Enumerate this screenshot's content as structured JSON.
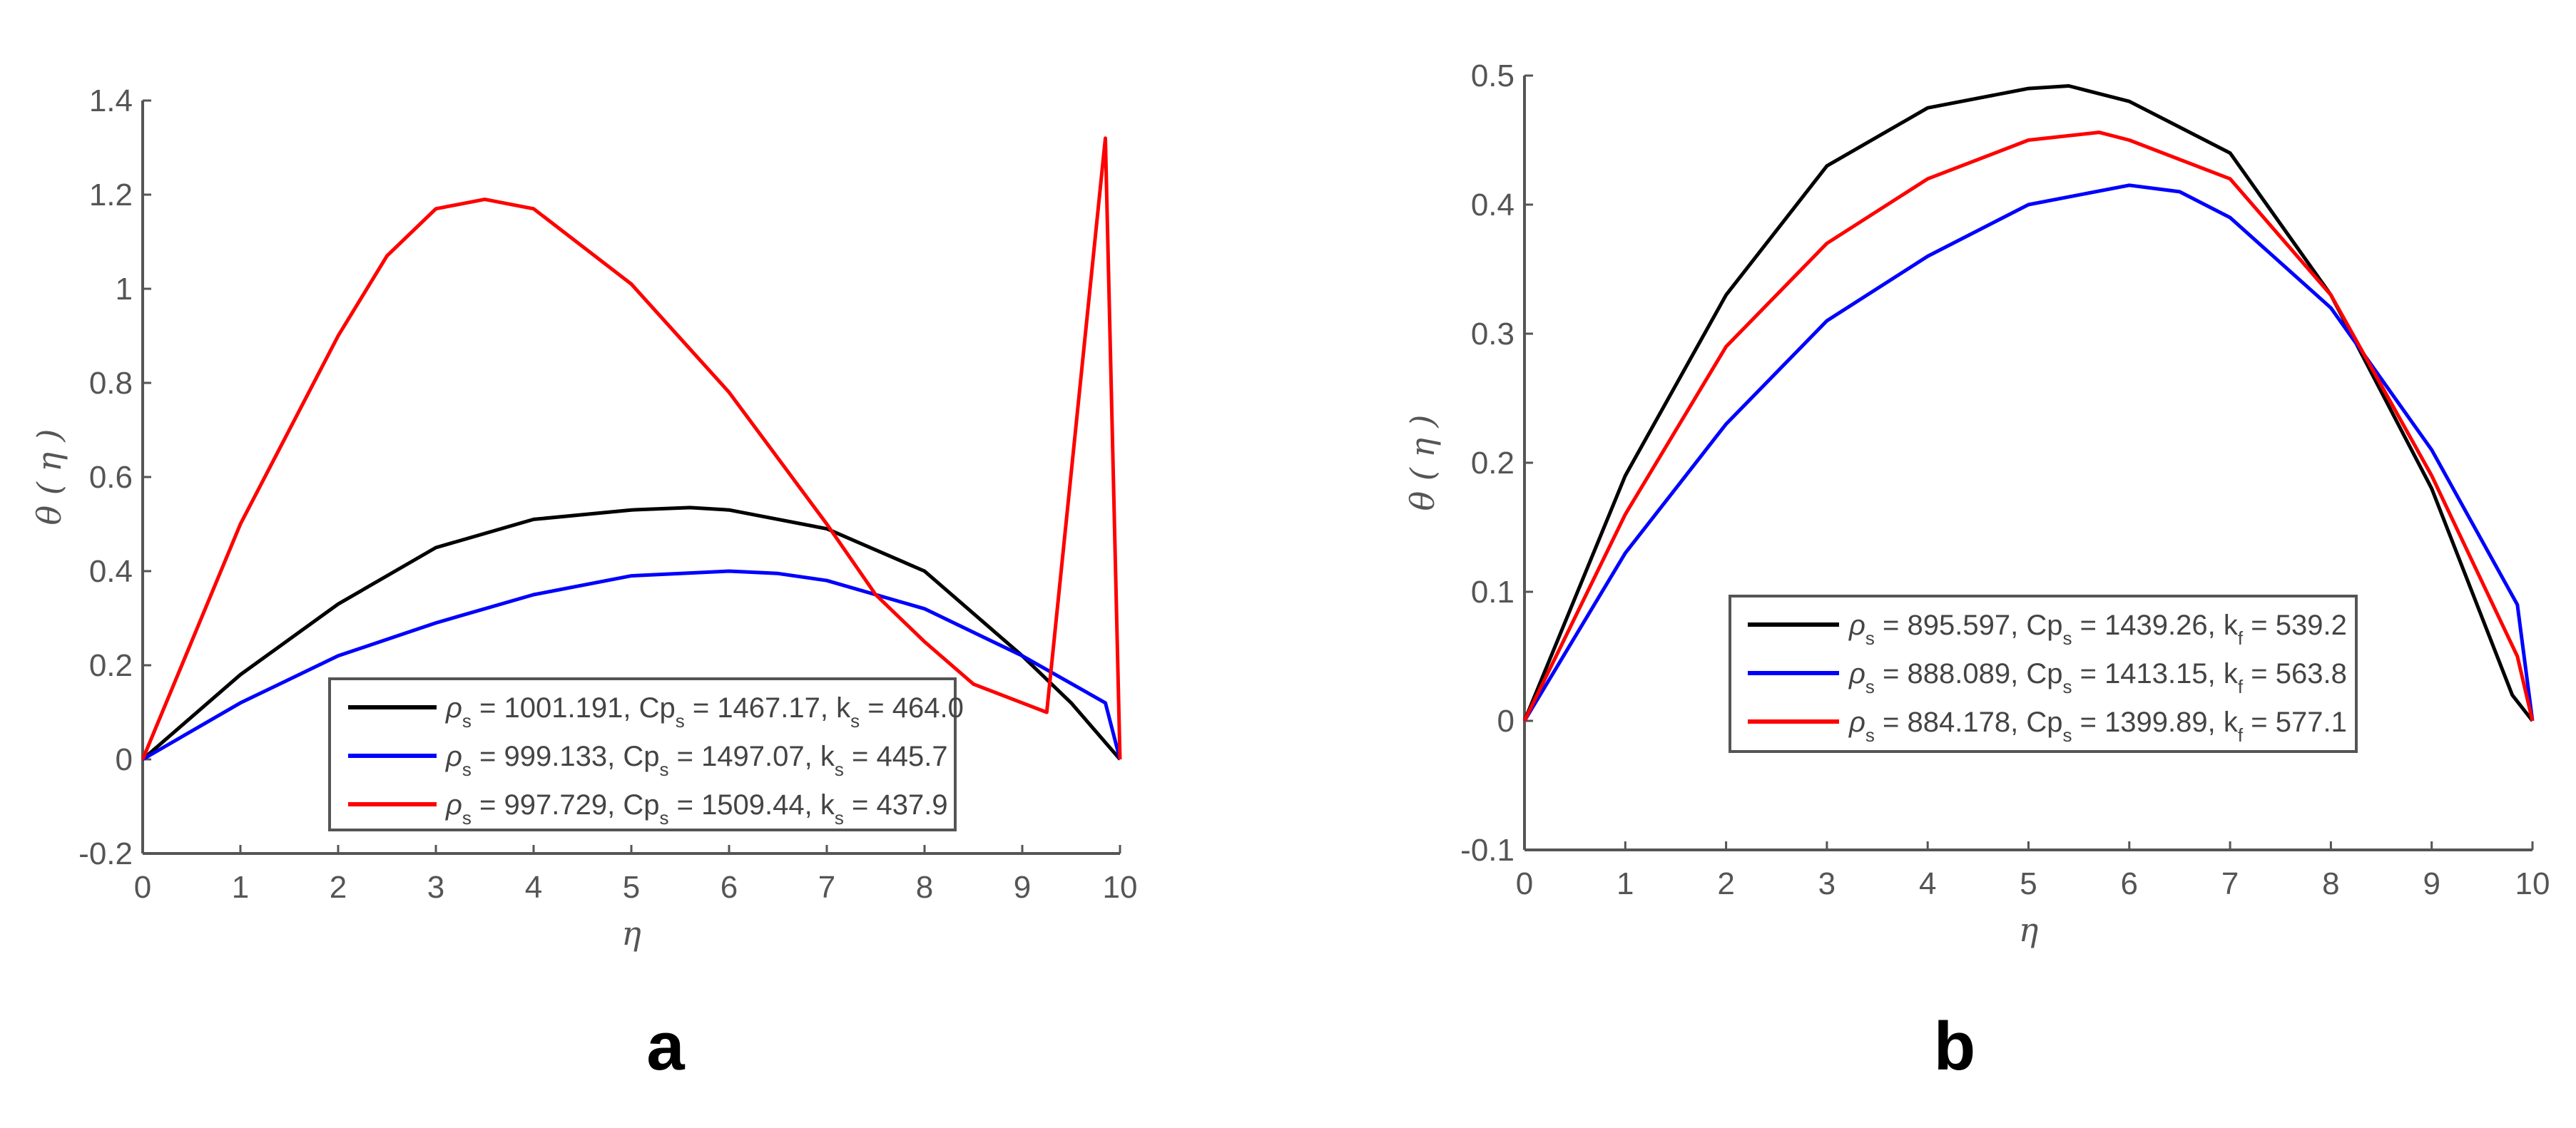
{
  "chart_data": [
    {
      "type": "line",
      "panel_label": "a",
      "xlabel": "η",
      "ylabel": "θ ( η )",
      "xlim": [
        0,
        10
      ],
      "ylim": [
        -0.2,
        1.4
      ],
      "xticks": [
        "0",
        "1",
        "2",
        "3",
        "4",
        "5",
        "6",
        "7",
        "8",
        "9",
        "10"
      ],
      "yticks": [
        "-0.2",
        "0",
        "0.2",
        "0.4",
        "0.6",
        "0.8",
        "1",
        "1.2",
        "1.4"
      ],
      "grid": false,
      "legend_position": "bottom-center",
      "series": [
        {
          "name": "ρs = 1001.191, Cps = 1467.17, ks = 464.0",
          "rho": "1001.191",
          "cp": "1467.17",
          "k_sub": "s",
          "k": "464.0",
          "color": "#000000",
          "x": [
            0,
            1,
            2,
            3,
            4,
            5,
            5.6,
            6,
            7,
            8,
            9,
            9.5,
            10
          ],
          "y": [
            0,
            0.18,
            0.33,
            0.45,
            0.51,
            0.53,
            0.535,
            0.53,
            0.49,
            0.4,
            0.22,
            0.12,
            0
          ]
        },
        {
          "name": "ρs = 999.133, Cps = 1497.07, ks = 445.7",
          "rho": "999.133",
          "cp": "1497.07",
          "k_sub": "s",
          "k": "445.7",
          "color": "#0000ff",
          "x": [
            0,
            1,
            2,
            3,
            4,
            5,
            6,
            6.5,
            7,
            8,
            9,
            9.85,
            10
          ],
          "y": [
            0,
            0.12,
            0.22,
            0.29,
            0.35,
            0.39,
            0.4,
            0.395,
            0.38,
            0.32,
            0.22,
            0.12,
            0
          ]
        },
        {
          "name": "ρs = 997.729, Cps = 1509.44, ks = 437.9",
          "rho": "997.729",
          "cp": "1509.44",
          "k_sub": "s",
          "k": "437.9",
          "color": "#ff0000",
          "x": [
            0,
            1,
            2,
            2.5,
            3,
            3.5,
            4,
            5,
            6,
            7,
            7.5,
            8,
            8.5,
            9,
            9.25,
            9.85,
            10
          ],
          "y": [
            0,
            0.5,
            0.9,
            1.07,
            1.17,
            1.19,
            1.17,
            1.01,
            0.78,
            0.5,
            0.35,
            0.25,
            0.16,
            0.12,
            0.1,
            1.32,
            0
          ]
        }
      ]
    },
    {
      "type": "line",
      "panel_label": "b",
      "xlabel": "η",
      "ylabel": "θ ( η )",
      "xlim": [
        0,
        10
      ],
      "ylim": [
        -0.1,
        0.5
      ],
      "xticks": [
        "0",
        "1",
        "2",
        "3",
        "4",
        "5",
        "6",
        "7",
        "8",
        "9",
        "10"
      ],
      "yticks": [
        "-0.1",
        "0",
        "0.1",
        "0.2",
        "0.3",
        "0.4",
        "0.5"
      ],
      "grid": false,
      "legend_position": "bottom-center",
      "series": [
        {
          "name": "ρs = 895.597, Cps = 1439.26, kf = 539.2",
          "rho": "895.597",
          "cp": "1439.26",
          "k_sub": "f",
          "k": "539.2",
          "color": "#000000",
          "x": [
            0,
            1,
            2,
            3,
            4,
            5,
            5.4,
            6,
            7,
            8,
            9,
            9.8,
            10
          ],
          "y": [
            0,
            0.19,
            0.33,
            0.43,
            0.475,
            0.49,
            0.492,
            0.48,
            0.44,
            0.33,
            0.18,
            0.02,
            0
          ]
        },
        {
          "name": "ρs = 888.089, Cps = 1413.15, kf = 563.8",
          "rho": "888.089",
          "cp": "1413.15",
          "k_sub": "f",
          "k": "563.8",
          "color": "#0000ff",
          "x": [
            0,
            1,
            2,
            3,
            4,
            5,
            6,
            6.5,
            7,
            8,
            9,
            9.85,
            10
          ],
          "y": [
            0,
            0.13,
            0.23,
            0.31,
            0.36,
            0.4,
            0.415,
            0.41,
            0.39,
            0.32,
            0.21,
            0.09,
            0
          ]
        },
        {
          "name": "ρs = 884.178, Cps = 1399.89, kf = 577.1",
          "rho": "884.178",
          "cp": "1399.89",
          "k_sub": "f",
          "k": "577.1",
          "color": "#ff0000",
          "x": [
            0,
            1,
            2,
            3,
            4,
            5,
            5.7,
            6,
            7,
            8,
            9,
            9.85,
            10
          ],
          "y": [
            0,
            0.16,
            0.29,
            0.37,
            0.42,
            0.45,
            0.456,
            0.45,
            0.42,
            0.33,
            0.19,
            0.05,
            0
          ]
        }
      ]
    }
  ]
}
